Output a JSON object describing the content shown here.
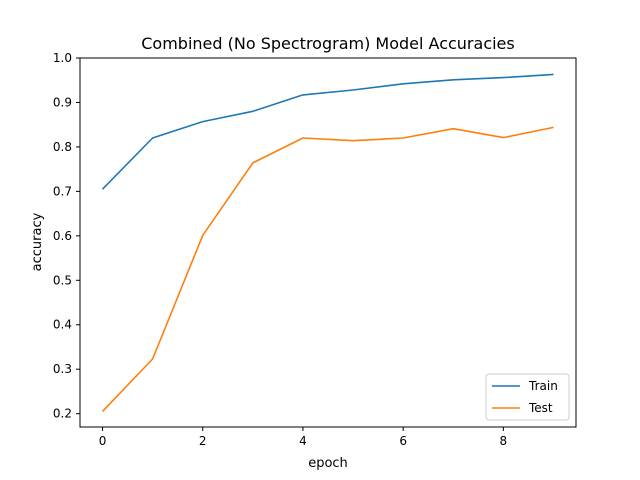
{
  "chart_data": {
    "type": "line",
    "title": "Combined (No Spectrogram) Model Accuracies",
    "xlabel": "epoch",
    "ylabel": "accuracy",
    "xlim": [
      -0.45,
      9.45
    ],
    "ylim": [
      0.17,
      1.0
    ],
    "x_ticks": [
      0,
      2,
      4,
      6,
      8
    ],
    "y_ticks": [
      0.2,
      0.3,
      0.4,
      0.5,
      0.6,
      0.7,
      0.8,
      0.9,
      1.0
    ],
    "x": [
      0,
      1,
      2,
      3,
      4,
      5,
      6,
      7,
      8,
      9
    ],
    "series": [
      {
        "name": "Train",
        "color": "#1f77b4",
        "values": [
          0.705,
          0.82,
          0.857,
          0.88,
          0.917,
          0.928,
          0.942,
          0.951,
          0.956,
          0.963
        ]
      },
      {
        "name": "Test",
        "color": "#ff7f0e",
        "values": [
          0.205,
          0.323,
          0.601,
          0.764,
          0.82,
          0.814,
          0.82,
          0.841,
          0.821,
          0.844
        ]
      }
    ],
    "grid": false,
    "legend_position": "lower-right"
  }
}
